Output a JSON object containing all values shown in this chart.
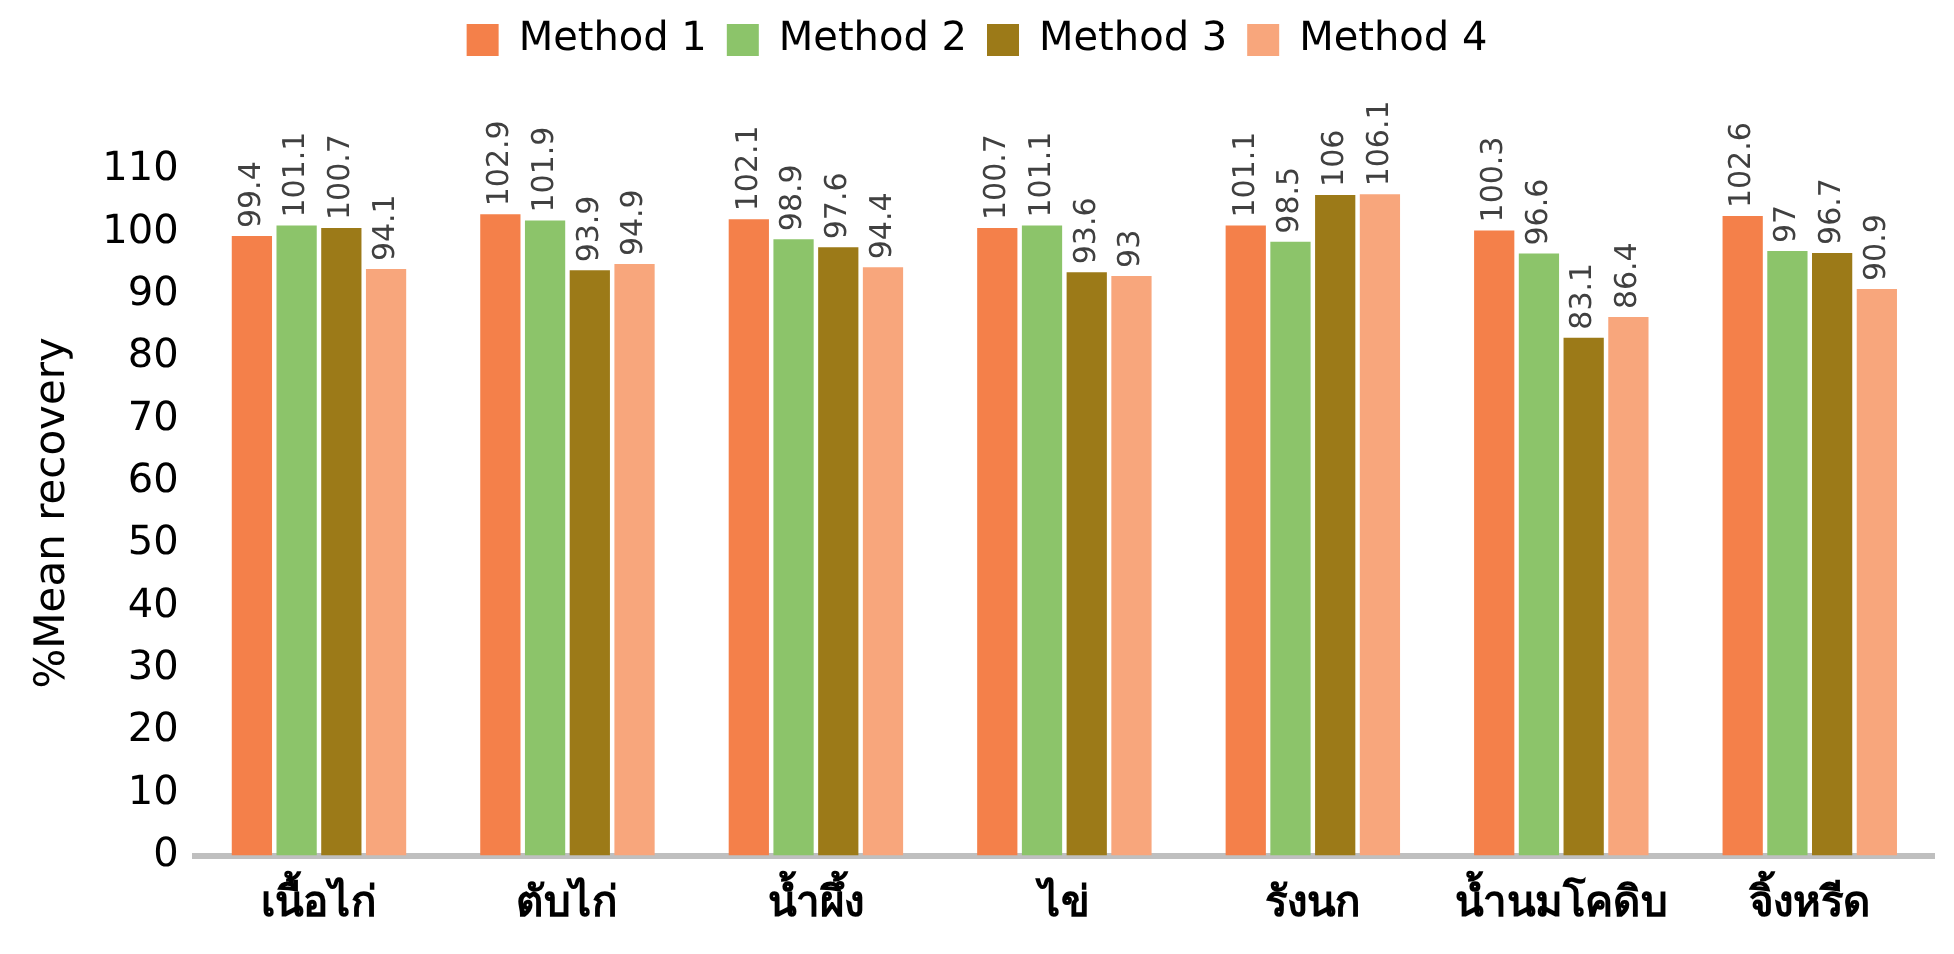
{
  "chart_data": {
    "type": "bar",
    "ylabel": "%Mean recovery",
    "categories": [
      "เนื้อไก่",
      "ตับไก่",
      "น้ำผึ้ง",
      "ไข่",
      "รังนก",
      "น้ำนมโคดิบ",
      "จิ้งหรีด"
    ],
    "series": [
      {
        "name": "Method 1",
        "color": "#f4804a",
        "values": [
          99.4,
          102.9,
          102.1,
          100.7,
          101.1,
          100.3,
          102.6
        ]
      },
      {
        "name": "Method 2",
        "color": "#8cc46a",
        "values": [
          101.1,
          101.9,
          98.9,
          101.1,
          98.5,
          96.6,
          97
        ]
      },
      {
        "name": "Method 3",
        "color": "#9c7a18",
        "values": [
          100.7,
          93.9,
          97.6,
          93.6,
          106,
          83.1,
          96.7
        ]
      },
      {
        "name": "Method 4",
        "color": "#f8a67c",
        "values": [
          94.1,
          94.9,
          94.4,
          93,
          106.1,
          86.4,
          90.9
        ]
      }
    ],
    "ylim": [
      0,
      110
    ],
    "yticks": [
      0,
      10,
      20,
      30,
      40,
      50,
      60,
      70,
      80,
      90,
      100,
      110
    ],
    "grid": false,
    "legend": "top",
    "data_labels": true
  }
}
